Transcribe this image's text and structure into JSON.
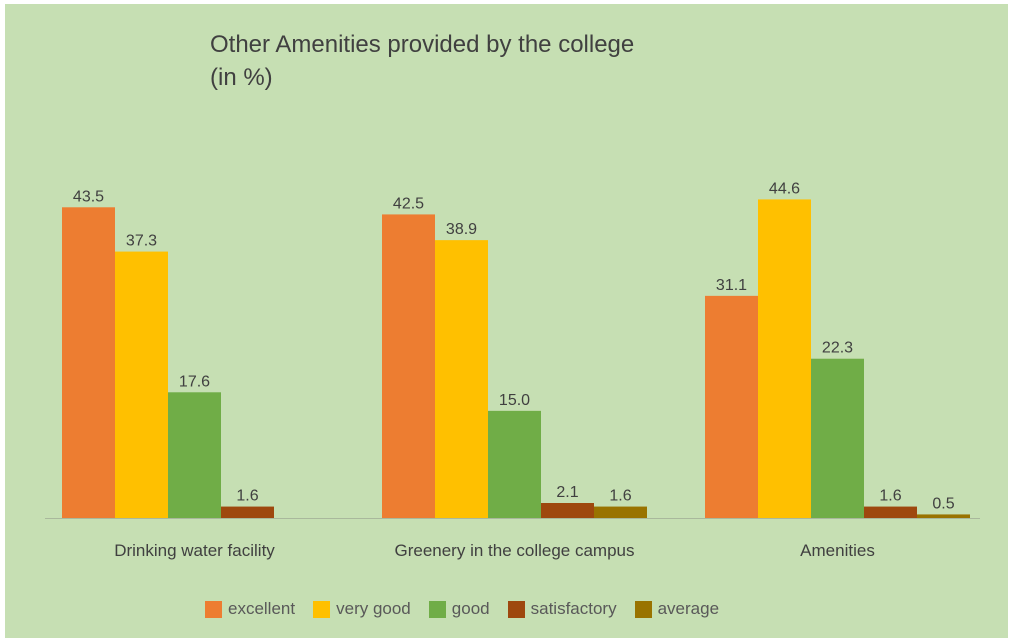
{
  "chart_data": {
    "type": "bar",
    "title": "Other Amenities provided by the college",
    "subtitle": "(in %)",
    "categories": [
      "Drinking water facility",
      "Greenery in the college campus",
      "Amenities"
    ],
    "series": [
      {
        "name": "excellent",
        "color": "#ed7d31",
        "values": [
          43.5,
          42.5,
          31.1
        ]
      },
      {
        "name": "very good",
        "color": "#ffc000",
        "values": [
          37.3,
          38.9,
          44.6
        ]
      },
      {
        "name": "good",
        "color": "#70ad47",
        "values": [
          17.6,
          15.0,
          22.3
        ]
      },
      {
        "name": "satisfactory",
        "color": "#9e480e",
        "values": [
          1.6,
          2.1,
          1.6
        ]
      },
      {
        "name": "average",
        "color": "#997300",
        "values": [
          null,
          1.6,
          0.5
        ]
      }
    ],
    "value_labels": [
      [
        "43.5",
        "42.5",
        "31.1"
      ],
      [
        "37.3",
        "38.9",
        "44.6"
      ],
      [
        "17.6",
        "15.0",
        "22.3"
      ],
      [
        "1.6",
        "2.1",
        "1.6"
      ],
      [
        "",
        "1.6",
        "0.5"
      ]
    ],
    "ylim": [
      0,
      50
    ],
    "grid": false,
    "legend_position": "bottom"
  }
}
